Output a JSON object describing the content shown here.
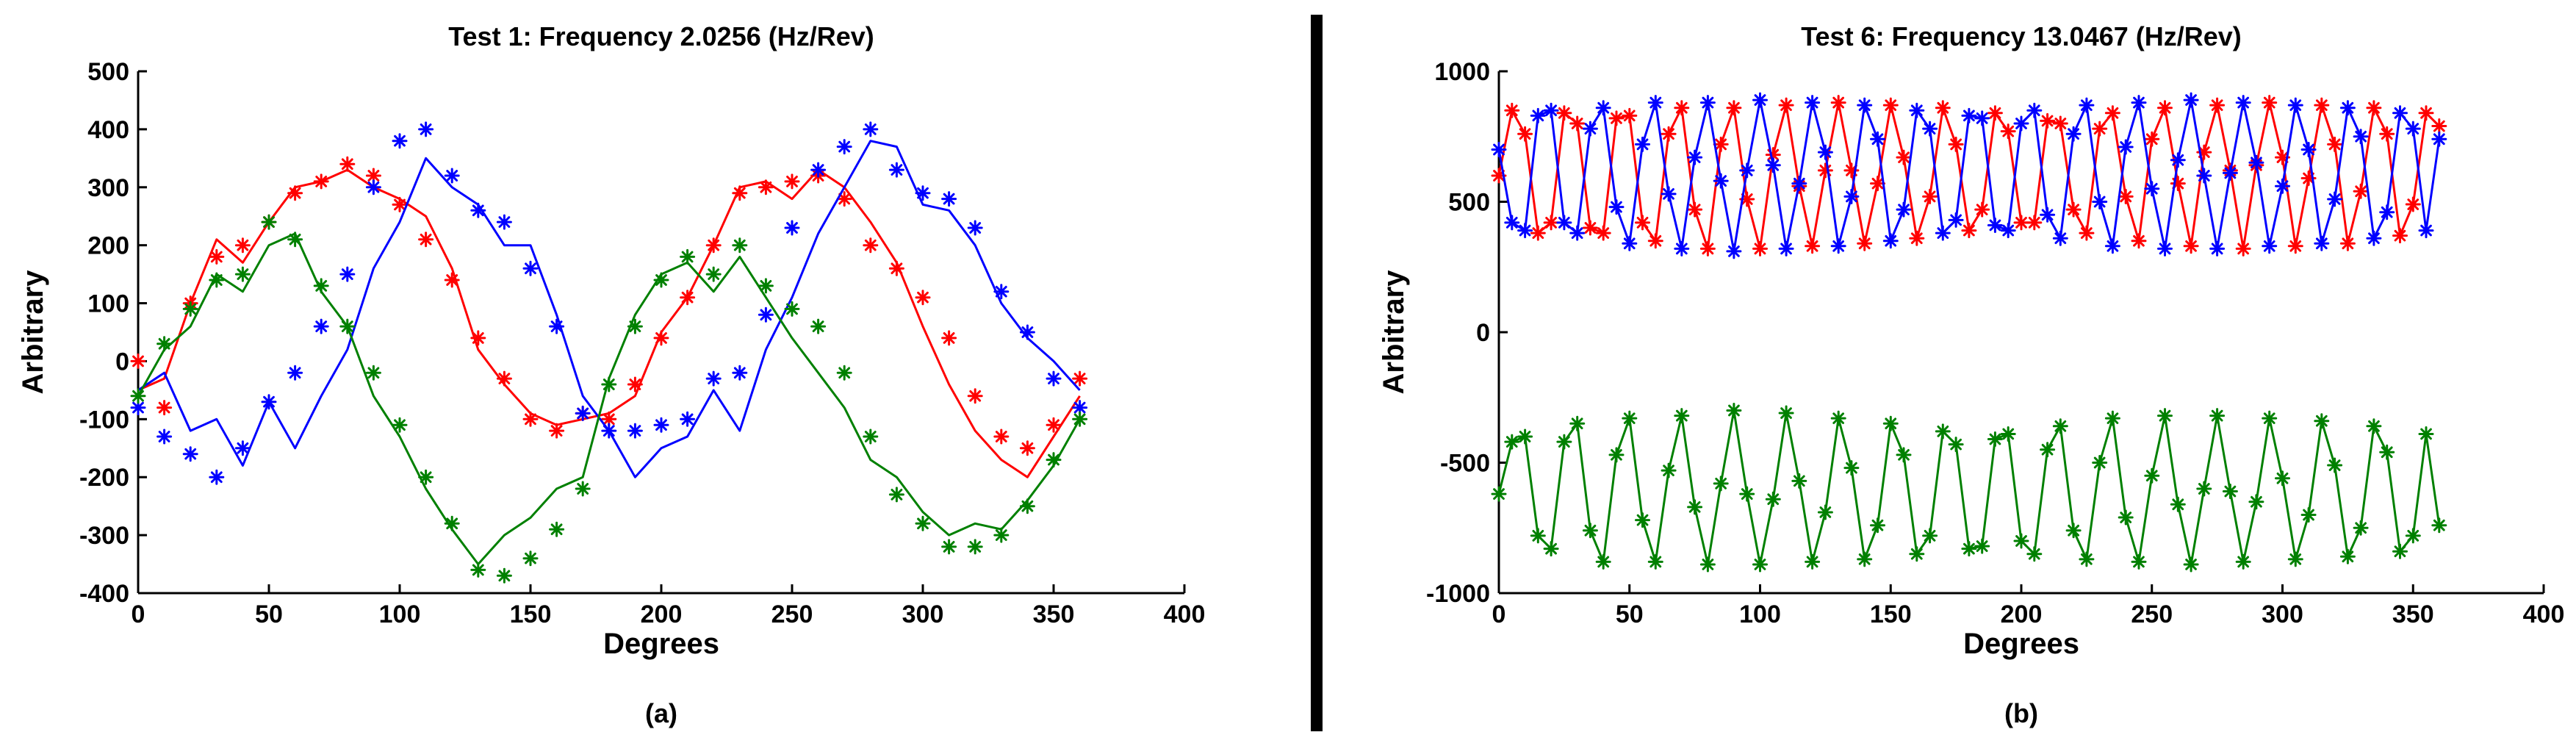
{
  "chart_data": [
    {
      "type": "line",
      "title": "Test 1: Frequency 2.0256 (Hz/Rev)",
      "xlabel": "Degrees",
      "ylabel": "Arbitrary",
      "caption": "(a)",
      "xlim": [
        0,
        400
      ],
      "ylim": [
        -400,
        500
      ],
      "xticks": [
        0,
        50,
        100,
        150,
        200,
        250,
        300,
        350,
        400
      ],
      "yticks": [
        -400,
        -300,
        -200,
        -100,
        0,
        100,
        200,
        300,
        400,
        500
      ],
      "grid": false,
      "series": [
        {
          "name": "red-measured",
          "color": "#ff0000",
          "style": "line",
          "x": [
            0,
            10,
            20,
            30,
            40,
            50,
            60,
            70,
            80,
            90,
            100,
            110,
            120,
            130,
            140,
            150,
            160,
            170,
            180,
            190,
            200,
            210,
            220,
            230,
            240,
            250,
            260,
            270,
            280,
            290,
            300,
            310,
            320,
            330,
            340,
            350,
            360
          ],
          "y": [
            -50,
            -30,
            100,
            210,
            170,
            240,
            300,
            310,
            330,
            300,
            280,
            250,
            160,
            20,
            -40,
            -90,
            -110,
            -100,
            -90,
            -60,
            50,
            110,
            200,
            300,
            310,
            280,
            330,
            300,
            240,
            170,
            60,
            -40,
            -120,
            -170,
            -200,
            -130,
            -60
          ]
        },
        {
          "name": "red-fit",
          "color": "#ff0000",
          "style": "markers",
          "x": [
            0,
            10,
            20,
            30,
            40,
            50,
            60,
            70,
            80,
            90,
            100,
            110,
            120,
            130,
            140,
            150,
            160,
            170,
            180,
            190,
            200,
            210,
            220,
            230,
            240,
            250,
            260,
            270,
            280,
            290,
            300,
            310,
            320,
            330,
            340,
            350,
            360
          ],
          "y": [
            0,
            -80,
            100,
            180,
            200,
            240,
            290,
            310,
            340,
            320,
            270,
            210,
            140,
            40,
            -30,
            -100,
            -120,
            -90,
            -100,
            -40,
            40,
            110,
            200,
            290,
            300,
            310,
            320,
            280,
            200,
            160,
            110,
            40,
            -60,
            -130,
            -150,
            -110,
            -30
          ]
        },
        {
          "name": "blue-measured",
          "color": "#0000ff",
          "style": "line",
          "x": [
            0,
            10,
            20,
            30,
            40,
            50,
            60,
            70,
            80,
            90,
            100,
            110,
            120,
            130,
            140,
            150,
            160,
            170,
            180,
            190,
            200,
            210,
            220,
            230,
            240,
            250,
            260,
            270,
            280,
            290,
            300,
            310,
            320,
            330,
            340,
            350,
            360
          ],
          "y": [
            -50,
            -20,
            -120,
            -100,
            -180,
            -70,
            -150,
            -60,
            20,
            160,
            240,
            350,
            300,
            270,
            200,
            200,
            80,
            -60,
            -120,
            -200,
            -150,
            -130,
            -50,
            -120,
            20,
            110,
            220,
            300,
            380,
            370,
            270,
            260,
            200,
            100,
            40,
            0,
            -50
          ]
        },
        {
          "name": "blue-fit",
          "color": "#0000ff",
          "style": "markers",
          "x": [
            0,
            10,
            20,
            30,
            40,
            50,
            60,
            70,
            80,
            90,
            100,
            110,
            120,
            130,
            140,
            150,
            160,
            170,
            180,
            190,
            200,
            210,
            220,
            230,
            240,
            250,
            260,
            270,
            280,
            290,
            300,
            310,
            320,
            330,
            340,
            350,
            360
          ],
          "y": [
            -80,
            -130,
            -160,
            -200,
            -150,
            -70,
            -20,
            60,
            150,
            300,
            380,
            400,
            320,
            260,
            240,
            160,
            60,
            -90,
            -120,
            -120,
            -110,
            -100,
            -30,
            -20,
            80,
            230,
            330,
            370,
            400,
            330,
            290,
            280,
            230,
            120,
            50,
            -30,
            -80
          ]
        },
        {
          "name": "green-measured",
          "color": "#008000",
          "style": "line",
          "x": [
            0,
            10,
            20,
            30,
            40,
            50,
            60,
            70,
            80,
            90,
            100,
            110,
            120,
            130,
            140,
            150,
            160,
            170,
            180,
            190,
            200,
            210,
            220,
            230,
            240,
            250,
            260,
            270,
            280,
            290,
            300,
            310,
            320,
            330,
            340,
            350,
            360
          ],
          "y": [
            -60,
            20,
            60,
            150,
            120,
            200,
            220,
            120,
            60,
            -60,
            -130,
            -220,
            -290,
            -350,
            -300,
            -270,
            -220,
            -200,
            -30,
            80,
            150,
            170,
            120,
            180,
            110,
            40,
            -20,
            -80,
            -170,
            -200,
            -260,
            -300,
            -280,
            -290,
            -240,
            -180,
            -100
          ]
        },
        {
          "name": "green-fit",
          "color": "#008000",
          "style": "markers",
          "x": [
            0,
            10,
            20,
            30,
            40,
            50,
            60,
            70,
            80,
            90,
            100,
            110,
            120,
            130,
            140,
            150,
            160,
            170,
            180,
            190,
            200,
            210,
            220,
            230,
            240,
            250,
            260,
            270,
            280,
            290,
            300,
            310,
            320,
            330,
            340,
            350,
            360
          ],
          "y": [
            -60,
            30,
            90,
            140,
            150,
            240,
            210,
            130,
            60,
            -20,
            -110,
            -200,
            -280,
            -360,
            -370,
            -340,
            -290,
            -220,
            -40,
            60,
            140,
            180,
            150,
            200,
            130,
            90,
            60,
            -20,
            -130,
            -230,
            -280,
            -320,
            -320,
            -300,
            -250,
            -170,
            -100
          ]
        }
      ]
    },
    {
      "type": "line",
      "title": "Test 6: Frequency 13.0467 (Hz/Rev)",
      "xlabel": "Degrees",
      "ylabel": "Arbitrary",
      "caption": "(b)",
      "xlim": [
        0,
        400
      ],
      "ylim": [
        -1000,
        1000
      ],
      "xticks": [
        0,
        50,
        100,
        150,
        200,
        250,
        300,
        350,
        400
      ],
      "yticks": [
        -1000,
        -500,
        0,
        500,
        1000
      ],
      "grid": false,
      "series": [
        {
          "name": "red",
          "color": "#ff0000",
          "style": "line+markers",
          "frequency": 13.0467,
          "phase_deg": 180,
          "offset": 600,
          "amplitude": 260,
          "x": [
            0,
            5,
            10,
            15,
            20,
            25,
            30,
            35,
            40,
            45,
            50,
            55,
            60,
            65,
            70,
            75,
            80,
            85,
            90,
            95,
            100,
            105,
            110,
            115,
            120,
            125,
            130,
            135,
            140,
            145,
            150,
            155,
            160,
            165,
            170,
            175,
            180,
            185,
            190,
            195,
            200,
            205,
            210,
            215,
            220,
            225,
            230,
            235,
            240,
            245,
            250,
            255,
            260,
            265,
            270,
            275,
            280,
            285,
            290,
            295,
            300,
            305,
            310,
            315,
            320,
            325,
            330,
            335,
            340,
            345,
            350,
            355,
            360
          ],
          "y": [
            600,
            850,
            760,
            380,
            420,
            840,
            800,
            400,
            380,
            820,
            830,
            420,
            350,
            760,
            860,
            470,
            320,
            720,
            860,
            510,
            320,
            680,
            870,
            560,
            330,
            620,
            880,
            620,
            340,
            570,
            870,
            670,
            360,
            520,
            860,
            720,
            390,
            470,
            840,
            770,
            420,
            420,
            810,
            800,
            470,
            380,
            780,
            840,
            520,
            350,
            740,
            860,
            570,
            330,
            690,
            870,
            620,
            320,
            640,
            880,
            670,
            330,
            590,
            870,
            720,
            340,
            540,
            860,
            760,
            370,
            490,
            840,
            790
          ]
        },
        {
          "name": "blue",
          "color": "#0000ff",
          "style": "line+markers",
          "frequency": 13.0467,
          "phase_deg": 0,
          "offset": 600,
          "amplitude": 260,
          "x": [
            0,
            5,
            10,
            15,
            20,
            25,
            30,
            35,
            40,
            45,
            50,
            55,
            60,
            65,
            70,
            75,
            80,
            85,
            90,
            95,
            100,
            105,
            110,
            115,
            120,
            125,
            130,
            135,
            140,
            145,
            150,
            155,
            160,
            165,
            170,
            175,
            180,
            185,
            190,
            195,
            200,
            205,
            210,
            215,
            220,
            225,
            230,
            235,
            240,
            245,
            250,
            255,
            260,
            265,
            270,
            275,
            280,
            285,
            290,
            295,
            300,
            305,
            310,
            315,
            320,
            325,
            330,
            335,
            340,
            345,
            350,
            355,
            360
          ],
          "y": [
            700,
            420,
            390,
            830,
            850,
            420,
            380,
            780,
            860,
            480,
            340,
            720,
            880,
            530,
            320,
            670,
            880,
            580,
            310,
            620,
            890,
            640,
            320,
            570,
            880,
            690,
            330,
            520,
            870,
            740,
            350,
            470,
            850,
            780,
            380,
            430,
            830,
            820,
            410,
            390,
            800,
            850,
            450,
            360,
            760,
            870,
            500,
            330,
            710,
            880,
            550,
            320,
            660,
            890,
            600,
            320,
            610,
            880,
            650,
            330,
            560,
            870,
            700,
            340,
            510,
            860,
            750,
            360,
            460,
            840,
            780,
            390,
            740
          ]
        },
        {
          "name": "green",
          "color": "#008000",
          "style": "line+markers",
          "frequency": 13.0467,
          "phase_deg": 0,
          "offset": -600,
          "amplitude": 270,
          "x": [
            0,
            5,
            10,
            15,
            20,
            25,
            30,
            35,
            40,
            45,
            50,
            55,
            60,
            65,
            70,
            75,
            80,
            85,
            90,
            95,
            100,
            105,
            110,
            115,
            120,
            125,
            130,
            135,
            140,
            145,
            150,
            155,
            160,
            165,
            170,
            175,
            180,
            185,
            190,
            195,
            200,
            205,
            210,
            215,
            220,
            225,
            230,
            235,
            240,
            245,
            250,
            255,
            260,
            265,
            270,
            275,
            280,
            285,
            290,
            295,
            300,
            305,
            310,
            315,
            320,
            325,
            330,
            335,
            340,
            345,
            350,
            355,
            360
          ],
          "y": [
            -620,
            -420,
            -400,
            -780,
            -830,
            -420,
            -350,
            -760,
            -880,
            -470,
            -330,
            -720,
            -880,
            -530,
            -320,
            -670,
            -890,
            -580,
            -300,
            -620,
            -890,
            -640,
            -310,
            -570,
            -880,
            -690,
            -330,
            -520,
            -870,
            -740,
            -350,
            -470,
            -850,
            -780,
            -380,
            -430,
            -830,
            -820,
            -410,
            -390,
            -800,
            -850,
            -450,
            -360,
            -760,
            -870,
            -500,
            -330,
            -710,
            -880,
            -550,
            -320,
            -660,
            -890,
            -600,
            -320,
            -610,
            -880,
            -650,
            -330,
            -560,
            -870,
            -700,
            -340,
            -510,
            -860,
            -750,
            -360,
            -460,
            -840,
            -780,
            -390,
            -740
          ]
        }
      ]
    }
  ]
}
